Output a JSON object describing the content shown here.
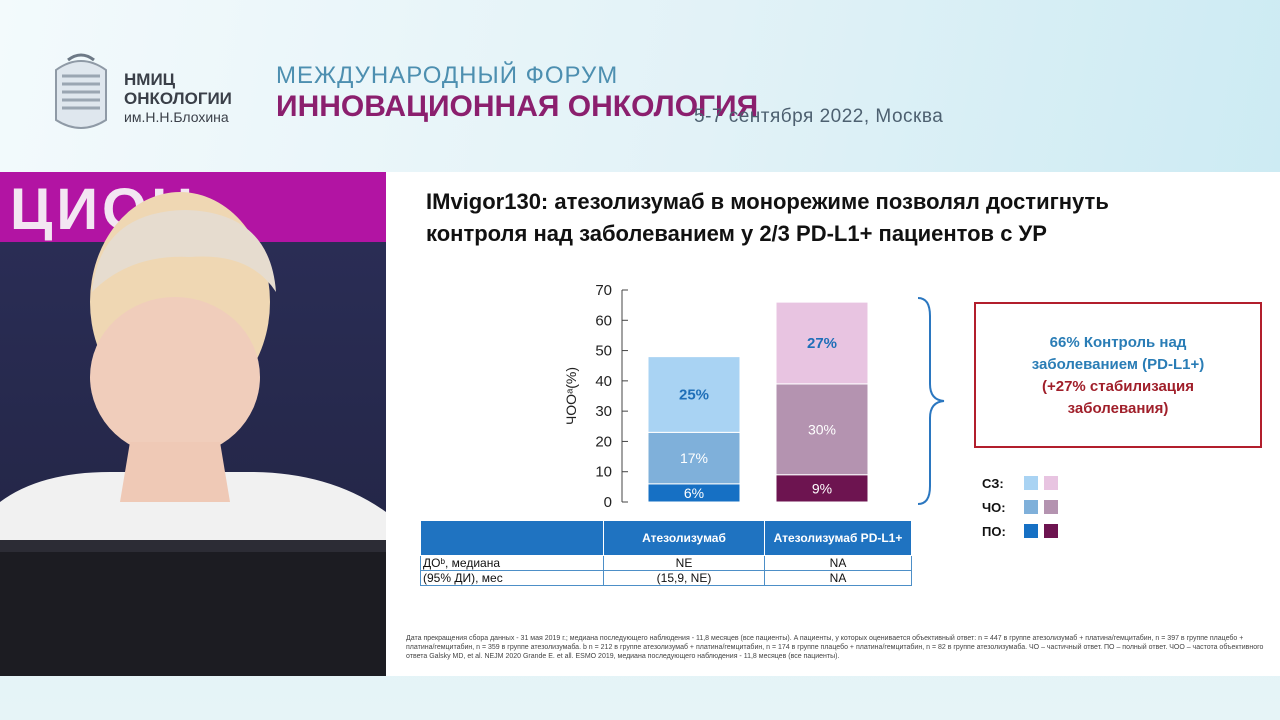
{
  "header": {
    "logo_line1": "НМИЦ",
    "logo_line2": "ОНКОЛОГИИ",
    "logo_line3": "им.Н.Н.Блохина",
    "forum_line1": "МЕЖДУНАРОДНЫЙ ФОРУМ",
    "forum_line2": "ИННОВАЦИОННАЯ ОНКОЛОГИЯ",
    "date": "5-7 сентября 2022, Москва"
  },
  "video": {
    "backdrop_text": "ЦИОН"
  },
  "slide": {
    "title_line1": "IMvigor130: атезолизумаб в монорежиме позволял достигнуть",
    "title_line2": "контроля над заболеванием у 2/3 PD-L1+ пациентов с УР",
    "callout": {
      "line1": "66% Контроль над",
      "line2": "заболеванием (PD-L1+)",
      "line3": "(+27% стабилизация",
      "line4": "заболевания)"
    },
    "legend": {
      "items": [
        {
          "label": "СЗ:",
          "colors": [
            "#a9d3f3",
            "#e8c4e1"
          ]
        },
        {
          "label": "ЧО:",
          "colors": [
            "#7fb0da",
            "#b493b0"
          ]
        },
        {
          "label": "ПО:",
          "colors": [
            "#1670c4",
            "#6d1450"
          ]
        }
      ]
    },
    "table": {
      "headers": [
        "",
        "Атезолизумаб",
        "Атезолизумаб PD-L1+"
      ],
      "rows": [
        [
          "ДОᵇ, медиана",
          "NE",
          "NA"
        ],
        [
          "(95% ДИ), мес",
          "(15,9, NE)",
          "NA"
        ]
      ]
    },
    "footnote": "Дата прекращения сбора данных - 31 мая 2019 г.; медиана последующего наблюдения - 11,8 месяцев (все пациенты). A пациенты, у которых оценивается объективный ответ: n = 447 в группе атезолизумаб + платина/гемцитабин, n = 397 в группе плацебо + платина/гемцитабин, n = 359 в группе атезолизумаба. b n = 212 в группе атезолизумаб + платина/гемцитабин, n = 174 в группе плацебо + платина/гемцитабин, n = 82 в группе атезолизумаба. ЧО – частичный ответ. ПО – полный ответ. ЧОО – частота объективного ответа Galsky MD, et al. NEJM 2020 Grande E. et all. ESMO 2019, медиана последующего наблюдения - 11,8 месяцев (все пациенты)."
  },
  "chart_data": {
    "type": "bar",
    "stacked": true,
    "categories": [
      "Атезолизумаб",
      "Атезолизумаб PD-L1+"
    ],
    "ylabel": "ЧООᵃ(%)",
    "ylim": [
      0,
      70
    ],
    "yticks": [
      0,
      10,
      20,
      30,
      40,
      50,
      60,
      70
    ],
    "series": [
      {
        "values": [
          6,
          9
        ],
        "labels": [
          "6%",
          "9%"
        ],
        "colors": [
          "#1670c4",
          "#6d1450"
        ],
        "label_color": "#ffffff"
      },
      {
        "values": [
          17,
          30
        ],
        "labels": [
          "17%",
          "30%"
        ],
        "colors": [
          "#7fb0da",
          "#b493b0"
        ],
        "label_color": "#ffffff"
      },
      {
        "values": [
          25,
          27
        ],
        "labels": [
          "25%",
          "27%"
        ],
        "colors": [
          "#a9d3f3",
          "#e8c4e1"
        ],
        "label_color": "#1f6fb8"
      }
    ]
  }
}
